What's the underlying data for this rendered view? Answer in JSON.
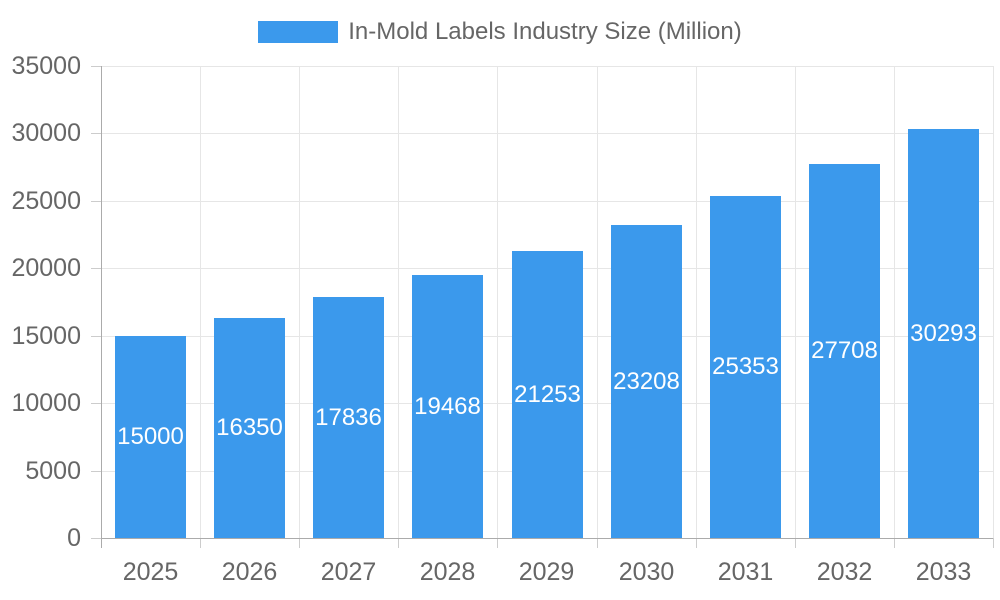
{
  "chart_data": {
    "type": "bar",
    "legend_label": "In-Mold Labels Industry Size (Million)",
    "legend_position": "top",
    "categories": [
      "2025",
      "2026",
      "2027",
      "2028",
      "2029",
      "2030",
      "2031",
      "2032",
      "2033"
    ],
    "values": [
      15000,
      16350,
      17836,
      19468,
      21253,
      23208,
      25353,
      27708,
      30293
    ],
    "value_labels": [
      "15000",
      "16350",
      "17836",
      "19468",
      "21253",
      "23208",
      "25353",
      "27708",
      "30293"
    ],
    "ylim": [
      0,
      35000
    ],
    "ytick_step": 5000,
    "ytick_labels": [
      "0",
      "5000",
      "10000",
      "15000",
      "20000",
      "25000",
      "30000",
      "35000"
    ],
    "xlabel": "",
    "ylabel": "",
    "grid": true,
    "colors": {
      "bar": "#3B99EC",
      "bar_value_text": "#FFFFFF",
      "axis_text": "#666666",
      "gridline": "#E6E6E6",
      "tick": "#CCCCCC",
      "axis_line": "#ABABAB",
      "background": "#FFFFFF"
    }
  }
}
